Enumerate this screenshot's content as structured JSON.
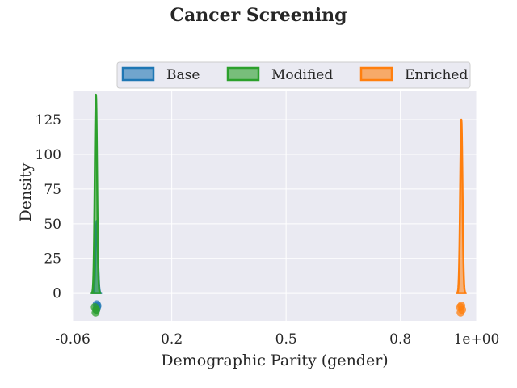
{
  "chart_data": {
    "type": "area",
    "title": "Cancer Screening",
    "xlabel": "Demographic Parity (gender)",
    "ylabel": "Density",
    "xlim": [
      -0.06,
      1.0
    ],
    "ylim": [
      -20,
      146
    ],
    "x_ticks": [
      {
        "value": -0.06,
        "label": "-0.06"
      },
      {
        "value": 0.2,
        "label": "0.2"
      },
      {
        "value": 0.5,
        "label": "0.5"
      },
      {
        "value": 0.8,
        "label": "0.8"
      },
      {
        "value": 1.0,
        "label": "1e+00"
      }
    ],
    "y_ticks": [
      {
        "value": 0,
        "label": "0"
      },
      {
        "value": 25,
        "label": "25"
      },
      {
        "value": 50,
        "label": "50"
      },
      {
        "value": 75,
        "label": "75"
      },
      {
        "value": 100,
        "label": "100"
      },
      {
        "value": 125,
        "label": "125"
      }
    ],
    "grid": true,
    "legend_position": "top, outside, horizontal",
    "series": [
      {
        "name": "Base",
        "color": "#1f77b4",
        "center": 0.003,
        "half_width": 0.012,
        "peak": 52,
        "points": [
          {
            "x": 0.003,
            "y": -8
          },
          {
            "x": 0.004,
            "y": -10
          },
          {
            "x": 0.002,
            "y": -12
          },
          {
            "x": 0.005,
            "y": -9
          }
        ]
      },
      {
        "name": "Modified",
        "color": "#2ca02c",
        "center": 0.001,
        "half_width": 0.012,
        "peak": 143,
        "points": [
          {
            "x": -0.002,
            "y": -10
          },
          {
            "x": 0.0,
            "y": -14
          },
          {
            "x": 0.002,
            "y": -12
          }
        ]
      },
      {
        "name": "Enriched",
        "color": "#ff7f0e",
        "center": 0.96,
        "half_width": 0.012,
        "peak": 125,
        "points": [
          {
            "x": 0.957,
            "y": -10
          },
          {
            "x": 0.962,
            "y": -12
          },
          {
            "x": 0.96,
            "y": -9
          },
          {
            "x": 0.958,
            "y": -14
          }
        ]
      }
    ]
  }
}
